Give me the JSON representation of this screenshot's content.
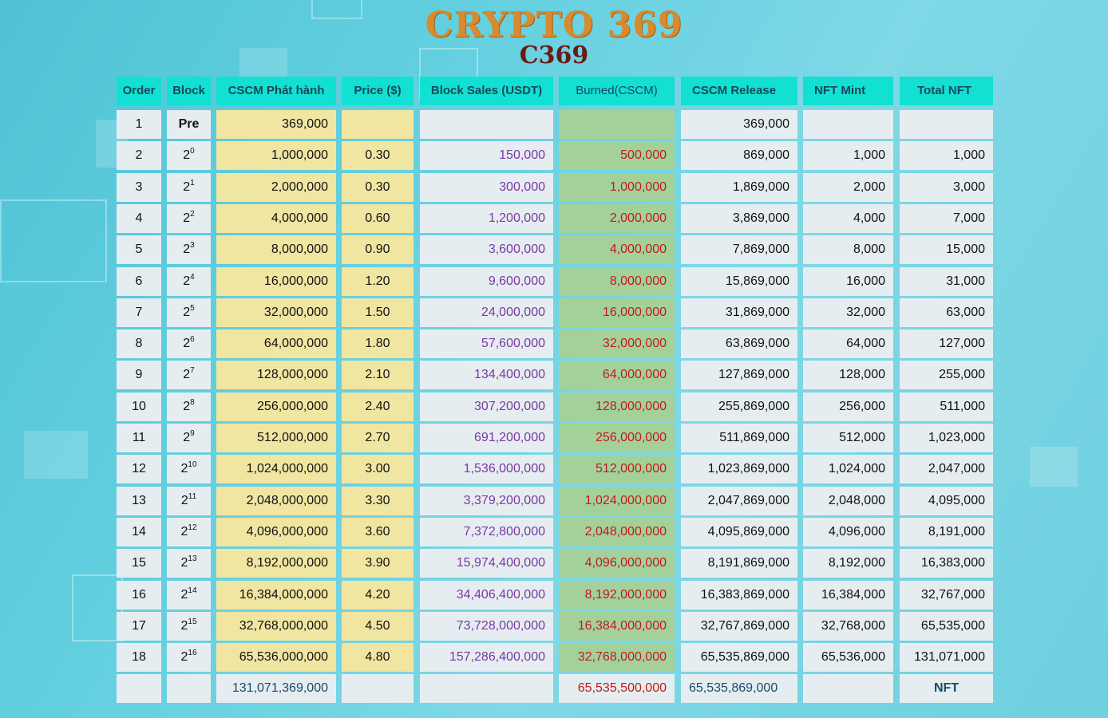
{
  "title": "CRYPTO 369",
  "subtitle": "C369",
  "colors": {
    "header_bg": "#12e0d2",
    "issued_bg": "#f1e5a2",
    "burned_bg": "#a4d19a",
    "block_sales_text": "#7a38a6",
    "burned_text": "#c31a1a"
  },
  "headers": {
    "order": "Order",
    "block": "Block",
    "issued": "CSCM Phát hành",
    "price": "Price ($)",
    "sales": "Block Sales (USDT)",
    "burned": "Burned(CSCM)",
    "release": "CSCM Release",
    "mint": "NFT Mint",
    "total": "Total NFT"
  },
  "rows": [
    {
      "order": "1",
      "block_base": "Pre",
      "block_exp": "",
      "issued": "369,000",
      "price": "",
      "sales": "",
      "burned": "",
      "release": "369,000",
      "mint": "",
      "total": ""
    },
    {
      "order": "2",
      "block_base": "2",
      "block_exp": "0",
      "issued": "1,000,000",
      "price": "0.30",
      "sales": "150,000",
      "burned": "500,000",
      "release": "869,000",
      "mint": "1,000",
      "total": "1,000"
    },
    {
      "order": "3",
      "block_base": "2",
      "block_exp": "1",
      "issued": "2,000,000",
      "price": "0.30",
      "sales": "300,000",
      "burned": "1,000,000",
      "release": "1,869,000",
      "mint": "2,000",
      "total": "3,000"
    },
    {
      "order": "4",
      "block_base": "2",
      "block_exp": "2",
      "issued": "4,000,000",
      "price": "0.60",
      "sales": "1,200,000",
      "burned": "2,000,000",
      "release": "3,869,000",
      "mint": "4,000",
      "total": "7,000"
    },
    {
      "order": "5",
      "block_base": "2",
      "block_exp": "3",
      "issued": "8,000,000",
      "price": "0.90",
      "sales": "3,600,000",
      "burned": "4,000,000",
      "release": "7,869,000",
      "mint": "8,000",
      "total": "15,000"
    },
    {
      "order": "6",
      "block_base": "2",
      "block_exp": "4",
      "issued": "16,000,000",
      "price": "1.20",
      "sales": "9,600,000",
      "burned": "8,000,000",
      "release": "15,869,000",
      "mint": "16,000",
      "total": "31,000"
    },
    {
      "order": "7",
      "block_base": "2",
      "block_exp": "5",
      "issued": "32,000,000",
      "price": "1.50",
      "sales": "24,000,000",
      "burned": "16,000,000",
      "release": "31,869,000",
      "mint": "32,000",
      "total": "63,000"
    },
    {
      "order": "8",
      "block_base": "2",
      "block_exp": "6",
      "issued": "64,000,000",
      "price": "1.80",
      "sales": "57,600,000",
      "burned": "32,000,000",
      "release": "63,869,000",
      "mint": "64,000",
      "total": "127,000"
    },
    {
      "order": "9",
      "block_base": "2",
      "block_exp": "7",
      "issued": "128,000,000",
      "price": "2.10",
      "sales": "134,400,000",
      "burned": "64,000,000",
      "release": "127,869,000",
      "mint": "128,000",
      "total": "255,000"
    },
    {
      "order": "10",
      "block_base": "2",
      "block_exp": "8",
      "issued": "256,000,000",
      "price": "2.40",
      "sales": "307,200,000",
      "burned": "128,000,000",
      "release": "255,869,000",
      "mint": "256,000",
      "total": "511,000"
    },
    {
      "order": "11",
      "block_base": "2",
      "block_exp": "9",
      "issued": "512,000,000",
      "price": "2.70",
      "sales": "691,200,000",
      "burned": "256,000,000",
      "release": "511,869,000",
      "mint": "512,000",
      "total": "1,023,000"
    },
    {
      "order": "12",
      "block_base": "2",
      "block_exp": "10",
      "issued": "1,024,000,000",
      "price": "3.00",
      "sales": "1,536,000,000",
      "burned": "512,000,000",
      "release": "1,023,869,000",
      "mint": "1,024,000",
      "total": "2,047,000"
    },
    {
      "order": "13",
      "block_base": "2",
      "block_exp": "11",
      "issued": "2,048,000,000",
      "price": "3.30",
      "sales": "3,379,200,000",
      "burned": "1,024,000,000",
      "release": "2,047,869,000",
      "mint": "2,048,000",
      "total": "4,095,000"
    },
    {
      "order": "14",
      "block_base": "2",
      "block_exp": "12",
      "issued": "4,096,000,000",
      "price": "3.60",
      "sales": "7,372,800,000",
      "burned": "2,048,000,000",
      "release": "4,095,869,000",
      "mint": "4,096,000",
      "total": "8,191,000"
    },
    {
      "order": "15",
      "block_base": "2",
      "block_exp": "13",
      "issued": "8,192,000,000",
      "price": "3.90",
      "sales": "15,974,400,000",
      "burned": "4,096,000,000",
      "release": "8,191,869,000",
      "mint": "8,192,000",
      "total": "16,383,000"
    },
    {
      "order": "16",
      "block_base": "2",
      "block_exp": "14",
      "issued": "16,384,000,000",
      "price": "4.20",
      "sales": "34,406,400,000",
      "burned": "8,192,000,000",
      "release": "16,383,869,000",
      "mint": "16,384,000",
      "total": "32,767,000"
    },
    {
      "order": "17",
      "block_base": "2",
      "block_exp": "15",
      "issued": "32,768,000,000",
      "price": "4.50",
      "sales": "73,728,000,000",
      "burned": "16,384,000,000",
      "release": "32,767,869,000",
      "mint": "32,768,000",
      "total": "65,535,000"
    },
    {
      "order": "18",
      "block_base": "2",
      "block_exp": "16",
      "issued": "65,536,000,000",
      "price": "4.80",
      "sales": "157,286,400,000",
      "burned": "32,768,000,000",
      "release": "65,535,869,000",
      "mint": "65,536,000",
      "total": "131,071,000"
    }
  ],
  "totals": {
    "issued": "131,071,369,000",
    "burned": "65,535,500,000",
    "release": "65,535,869,000",
    "total": "NFT"
  }
}
